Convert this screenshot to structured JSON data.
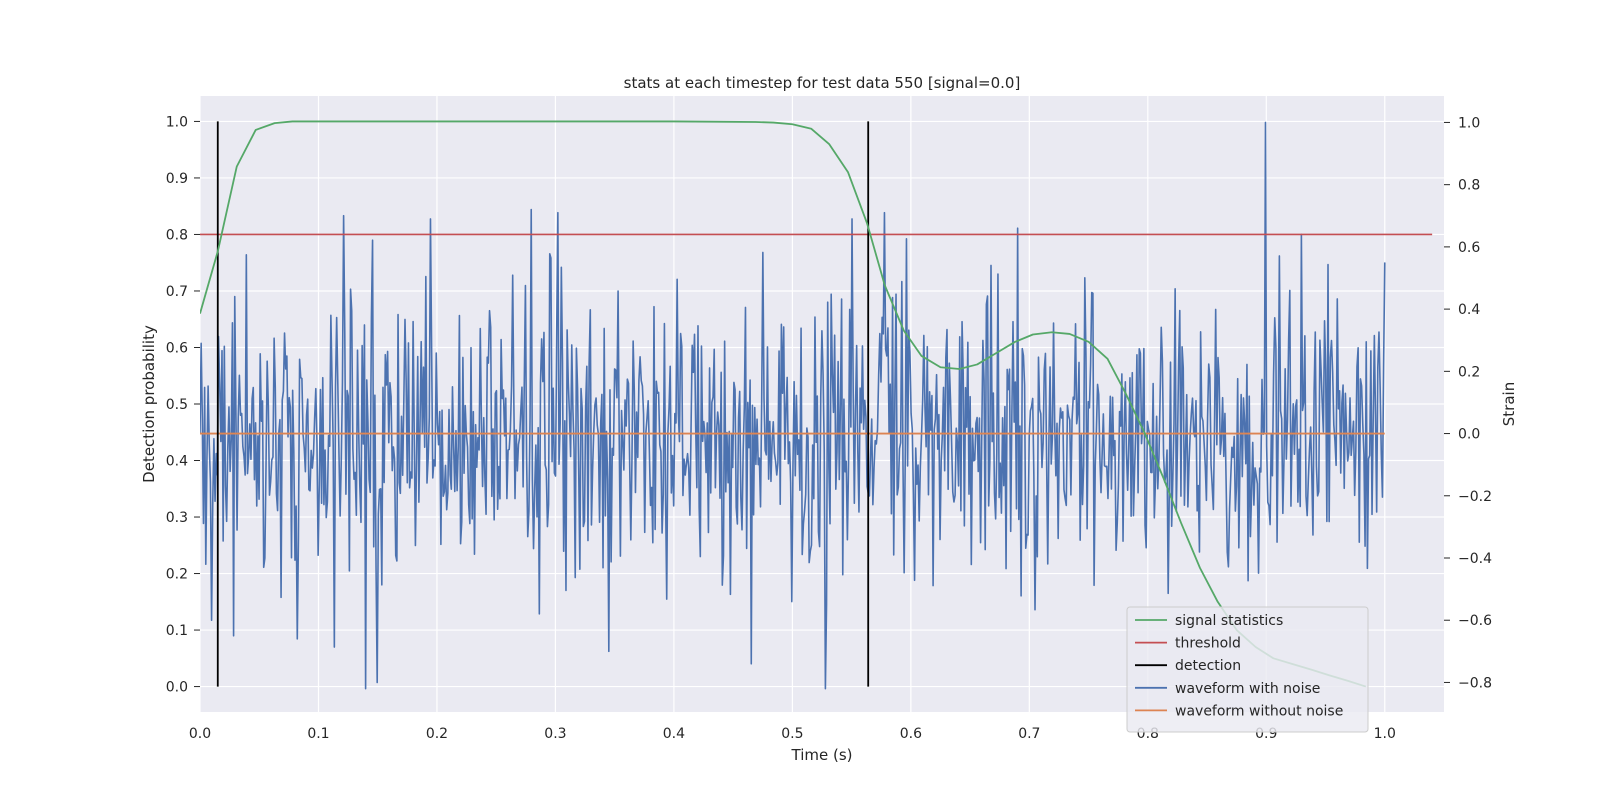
{
  "chart_data": {
    "type": "line",
    "title": "stats at each timestep for test data 550 [signal=0.0]",
    "xlabel": "Time (s)",
    "ylabel_left": "Detection probability",
    "ylabel_right": "Strain",
    "xlim": [
      0.0,
      1.05
    ],
    "ylim_left": [
      -0.045,
      1.045
    ],
    "ylim_right": [
      -0.895,
      1.085
    ],
    "xticks": [
      "0.0",
      "0.1",
      "0.2",
      "0.3",
      "0.4",
      "0.5",
      "0.6",
      "0.7",
      "0.8",
      "0.9",
      "1.0"
    ],
    "yticks_left": [
      "0.0",
      "0.1",
      "0.2",
      "0.3",
      "0.4",
      "0.5",
      "0.6",
      "0.7",
      "0.8",
      "0.9",
      "1.0"
    ],
    "yticks_right": [
      "−0.8",
      "−0.6",
      "−0.4",
      "−0.2",
      "0.0",
      "0.2",
      "0.4",
      "0.6",
      "0.8",
      "1.0"
    ],
    "grid": true,
    "legend_position": "lower-right",
    "colors": {
      "background": "#eaeaf2",
      "grid": "#ffffff",
      "signal_statistics": "#55a868",
      "threshold": "#c44e52",
      "detection": "#000000",
      "waveform_with_noise": "#4c72b0",
      "waveform_without_noise": "#dd8452"
    },
    "legend": [
      {
        "label": "signal statistics",
        "key": "signal_statistics"
      },
      {
        "label": "threshold",
        "key": "threshold"
      },
      {
        "label": "detection",
        "key": "detection"
      },
      {
        "label": "waveform with noise",
        "key": "waveform_with_noise"
      },
      {
        "label": "waveform without noise",
        "key": "waveform_without_noise"
      }
    ],
    "threshold": 0.8,
    "threshold_x_range": [
      0.0,
      1.04
    ],
    "detections": [
      0.015,
      0.564
    ],
    "detection_y_range": [
      0.0,
      1.0
    ],
    "signal_statistics": {
      "x": [
        0.0,
        0.015,
        0.031,
        0.047,
        0.063,
        0.078,
        0.1,
        0.2,
        0.3,
        0.4,
        0.469,
        0.484,
        0.5,
        0.516,
        0.531,
        0.547,
        0.563,
        0.578,
        0.594,
        0.609,
        0.625,
        0.641,
        0.656,
        0.672,
        0.688,
        0.703,
        0.719,
        0.734,
        0.75,
        0.766,
        0.781,
        0.797,
        0.813,
        0.828,
        0.844,
        0.859,
        0.875,
        0.891,
        0.906,
        0.922,
        0.938,
        0.953,
        0.969,
        0.984
      ],
      "values": [
        0.66,
        0.77,
        0.92,
        0.985,
        0.997,
        1.0,
        1.0,
        1.0,
        1.0,
        1.0,
        0.999,
        0.998,
        0.995,
        0.987,
        0.96,
        0.91,
        0.82,
        0.71,
        0.63,
        0.585,
        0.565,
        0.562,
        0.57,
        0.59,
        0.61,
        0.623,
        0.627,
        0.624,
        0.61,
        0.58,
        0.52,
        0.45,
        0.37,
        0.29,
        0.21,
        0.15,
        0.1,
        0.07,
        0.05,
        0.04,
        0.03,
        0.02,
        0.01,
        0.0
      ]
    },
    "waveform_without_noise": {
      "x": [
        0.0,
        1.0
      ],
      "values": [
        0.0,
        0.0
      ]
    },
    "waveform_with_noise": {
      "x_range": [
        0.0,
        1.0
      ],
      "num_points": 1024,
      "seed": 550,
      "std": 0.22,
      "fixed_points": [
        [
          0.0,
          0.0
        ],
        [
          0.005,
          -0.42
        ],
        [
          0.01,
          -0.6
        ],
        [
          0.028,
          -0.65
        ],
        [
          0.11,
          0.38
        ],
        [
          0.14,
          -0.82
        ],
        [
          0.15,
          -0.8
        ],
        [
          0.195,
          0.69
        ],
        [
          0.28,
          0.72
        ],
        [
          0.302,
          0.71
        ],
        [
          0.345,
          -0.7
        ],
        [
          0.465,
          -0.74
        ],
        [
          0.55,
          0.69
        ],
        [
          0.578,
          0.71
        ],
        [
          0.69,
          0.66
        ],
        [
          0.899,
          1.0
        ],
        [
          0.93,
          0.64
        ],
        [
          1.0,
          0.55
        ]
      ]
    }
  }
}
